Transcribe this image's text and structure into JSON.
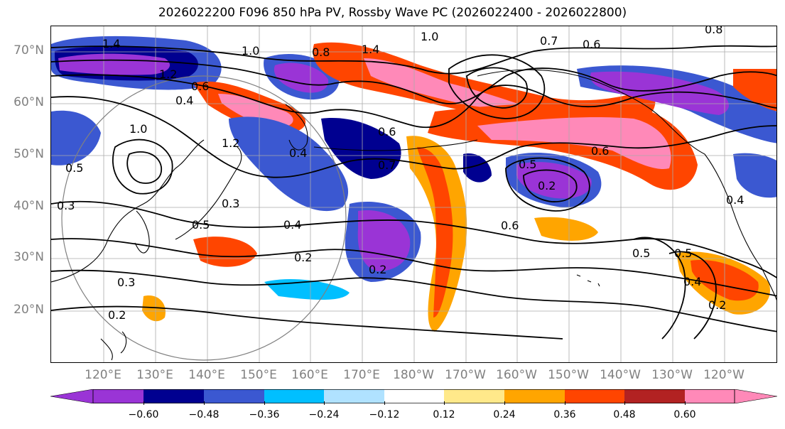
{
  "title": "2026022200 F096 850 hPa PV, Rossby Wave PC (2026022400 - 2026022800)",
  "lat_labels": [
    "70°N",
    "60°N",
    "50°N",
    "40°N",
    "30°N",
    "20°N"
  ],
  "lon_labels": [
    "120°E",
    "130°E",
    "140°E",
    "150°E",
    "160°E",
    "170°E",
    "180°W",
    "170°W",
    "160°W",
    "150°W",
    "140°W",
    "130°W",
    "120°W"
  ],
  "contour_labels": [
    "1.4",
    "1.0",
    "0.8",
    "1.4",
    "1.0",
    "0.7",
    "0.6",
    "0.8",
    "1.2",
    "0.6",
    "0.4",
    "1.0",
    "1.2",
    "0.5",
    "0.6",
    "0.4",
    "0.7",
    "0.6",
    "0.5",
    "0.2",
    "0.6",
    "0.4",
    "0.2",
    "0.2",
    "0.3",
    "0.5",
    "0.5",
    "0.4",
    "0.2",
    "0.3",
    "0.5",
    "0.3",
    "0.2",
    "0.4"
  ],
  "colorbar": {
    "colors": [
      "#9a34d6",
      "#000090",
      "#3b58d1",
      "#00bfff",
      "#b0e2ff",
      "#ffffff",
      "#ffe98a",
      "#ffa500",
      "#ff4500",
      "#b22222",
      "#ff89b8"
    ],
    "tick_labels": [
      "−0.60",
      "−0.48",
      "−0.36",
      "−0.24",
      "−0.12",
      "0.12",
      "0.24",
      "0.36",
      "0.48",
      "0.60"
    ]
  },
  "colors": {
    "grid": "#aaaaaa",
    "contour": "#000000",
    "coast": "#000000",
    "circle": "#808080"
  }
}
